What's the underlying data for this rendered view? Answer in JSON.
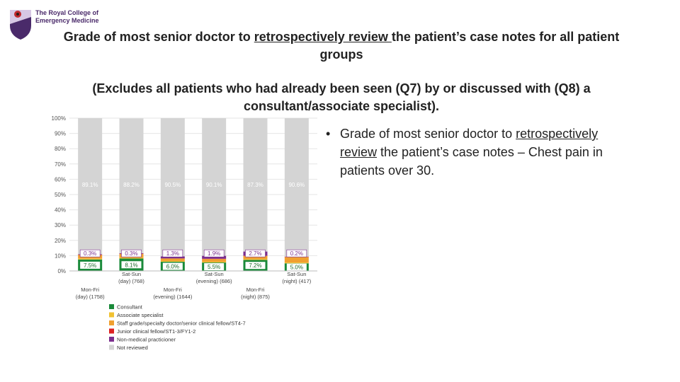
{
  "logo": {
    "line1": "The Royal College of",
    "line2": "Emergency Medicine"
  },
  "title": {
    "part1": "Grade of most senior doctor to ",
    "underlined": "retrospectively review ",
    "part2": "the patient’s case notes for all patient groups"
  },
  "subtitle": "(Excludes all patients who had already been seen (Q7) by or discussed with (Q8) a consultant/associate specialist).",
  "bullet": {
    "marker": "•",
    "part1": "Grade of most senior doctor to ",
    "underlined1": "retrospectively",
    "underlined2": "review",
    "part2": " the patient’s case notes – Chest pain in patients over 30."
  },
  "colors": {
    "consultant": "#1a8a3a",
    "associate": "#f1c232",
    "staff": "#f0a030",
    "junior": "#dd2222",
    "nonmedical": "#7b2f8e",
    "notreviewed": "#d4d4d4",
    "logo_purple": "#4a2a6a"
  },
  "chart_data": {
    "type": "bar",
    "stacked": true,
    "percent": true,
    "ylim": [
      0,
      100
    ],
    "yticks": [
      "0%",
      "10%",
      "20%",
      "30%",
      "40%",
      "50%",
      "60%",
      "70%",
      "80%",
      "90%",
      "100%"
    ],
    "categories": [
      [
        "Mon-Fri",
        "(day) (1758)"
      ],
      [
        "Sat-Sun",
        "(day) (768)"
      ],
      [
        "Mon-Fri",
        "(evening) (1644)"
      ],
      [
        "Sat-Sun",
        "(evening) (686)"
      ],
      [
        "Mon-Fri",
        "(night) (875)"
      ],
      [
        "Sat-Sun",
        "(night) (417)"
      ]
    ],
    "series": [
      {
        "name": "Consultant",
        "key": "consultant",
        "values": [
          7.5,
          8.1,
          6.0,
          5.5,
          7.2,
          5.0
        ]
      },
      {
        "name": "Associate specialist",
        "key": "associate",
        "values": [
          0.5,
          0.5,
          0.5,
          0.5,
          0.5,
          0.5
        ]
      },
      {
        "name": "Staff grade/specialty doctor/senior clinical fellow/ST4-7",
        "key": "staff",
        "values": [
          2.4,
          2.5,
          1.6,
          1.8,
          2.1,
          3.5
        ]
      },
      {
        "name": "Junior clinical fellow/ST1-3/FY1-2",
        "key": "junior",
        "values": [
          0.2,
          0.2,
          0.1,
          0.2,
          0.2,
          0.2
        ]
      },
      {
        "name": "Non-medical practicioner",
        "key": "nonmedical",
        "values": [
          0.3,
          0.3,
          1.3,
          1.9,
          2.7,
          0.2
        ]
      },
      {
        "name": "Not reviewed",
        "key": "notreviewed",
        "values": [
          89.1,
          88.2,
          90.5,
          90.1,
          87.3,
          90.6
        ]
      }
    ],
    "labels": {
      "consultant": [
        "7.5%",
        "8.1%",
        "6.0%",
        "5.5%",
        "7.2%",
        "5.0%"
      ],
      "nonmedical": [
        "0.3%",
        "0.3%",
        "1.3%",
        "1.9%",
        "2.7%",
        "0.2%"
      ],
      "notreviewed": [
        "89.1%",
        "88.2%",
        "90.5%",
        "90.1%",
        "87.3%",
        "90.6%"
      ]
    },
    "legend_position": "bottom"
  }
}
